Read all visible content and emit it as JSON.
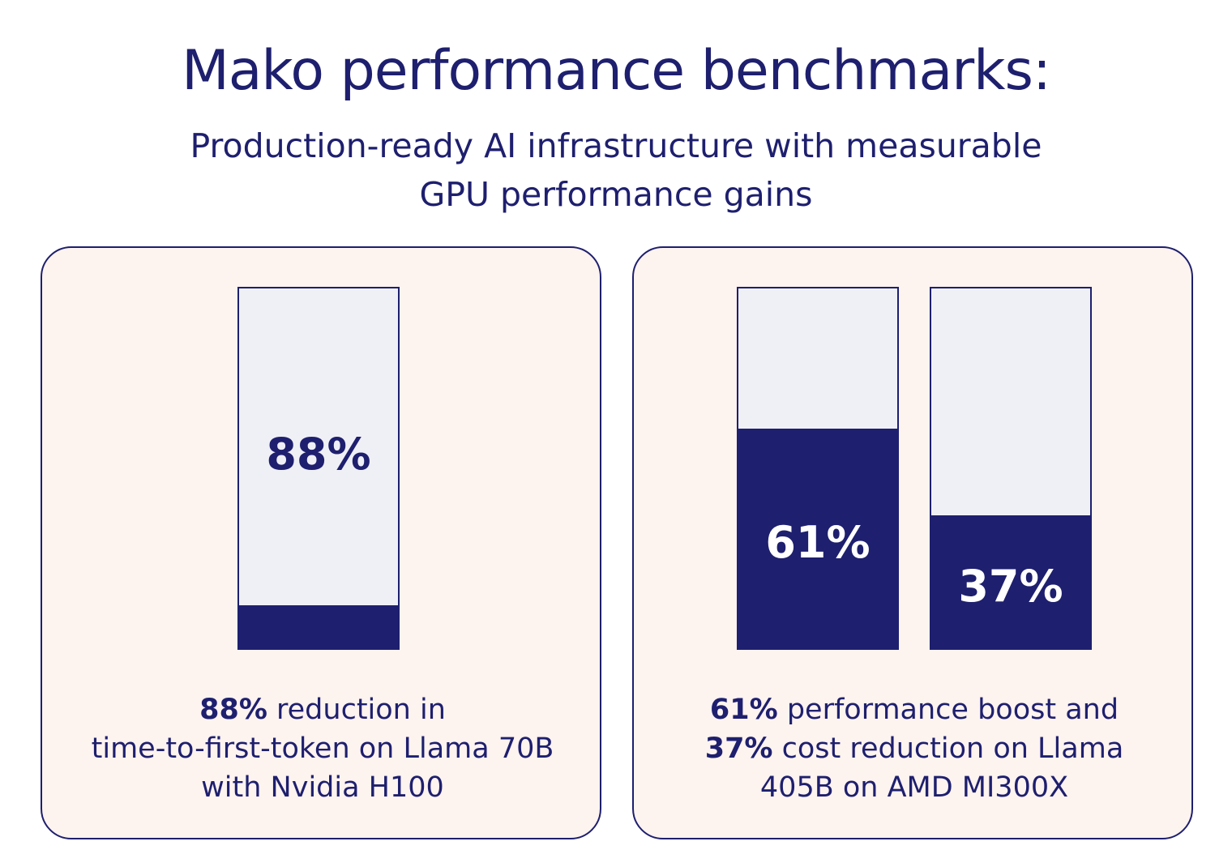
{
  "title": "Mako performance benchmarks:",
  "subtitle_line1": "Production-ready AI infrastructure with measurable",
  "subtitle_line2": "GPU performance gains",
  "colors": {
    "navy": "#1e1f6e",
    "card_bg": "#fdf3ef",
    "bar_bg": "#eff0f6"
  },
  "chart_data": [
    {
      "type": "bar",
      "categories": [
        "Llama 70B with Nvidia H100"
      ],
      "values": [
        88
      ],
      "value_labels": [
        "88%"
      ],
      "filled_fraction": [
        0.12
      ],
      "ylim": [
        0,
        100
      ],
      "caption": {
        "bold": "88%",
        "line1": " reduction in",
        "line2": "time-to-first-token on Llama 70B",
        "line3": "with Nvidia H100"
      }
    },
    {
      "type": "bar",
      "categories": [
        "performance boost",
        "cost reduction"
      ],
      "values": [
        61,
        37
      ],
      "value_labels": [
        "61%",
        "37%"
      ],
      "filled_fraction": [
        0.61,
        0.37
      ],
      "ylim": [
        0,
        100
      ],
      "caption": {
        "bold1": "61%",
        "line1": " performance boost and",
        "bold2": "37%",
        "line2": " cost reduction on Llama",
        "line3": "405B on AMD MI300X"
      }
    }
  ]
}
